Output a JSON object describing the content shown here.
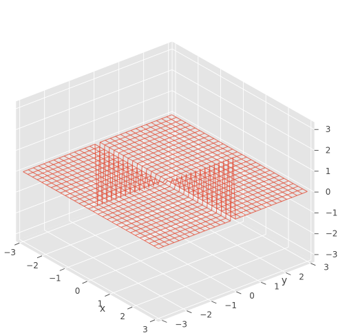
{
  "chart_data": {
    "type": "wireframe-3d",
    "title": "",
    "xlabel": "x",
    "ylabel": "y",
    "zlabel": "",
    "xlim": [
      -3,
      3
    ],
    "ylim": [
      -3,
      3
    ],
    "zlim": [
      -3,
      3
    ],
    "x_ticks": [
      -3,
      -2,
      -1,
      0,
      1,
      2,
      3
    ],
    "y_ticks": [
      -3,
      -2,
      -1,
      0,
      1,
      2,
      3
    ],
    "z_ticks": [
      -3,
      -2,
      -1,
      0,
      1,
      2,
      3
    ],
    "x_tick_labels": [
      "−3",
      "−2",
      "−1",
      "0",
      "1",
      "2",
      "3"
    ],
    "y_tick_labels": [
      "−3",
      "−2",
      "−1",
      "0",
      "1",
      "2",
      "3"
    ],
    "z_tick_labels": [
      "−3",
      "−2",
      "−1",
      "0",
      "1",
      "2",
      "3"
    ],
    "surface": {
      "grid_x_range": [
        -3,
        3
      ],
      "grid_y_range": [
        -3,
        3
      ],
      "grid_lines_per_axis": 30,
      "base_z": 0,
      "singular_line_y_equals": 0,
      "description_values": {
        "x_range_of_spikes": [
          -3,
          3
        ],
        "spike_z_at_x_neg3": -3.0,
        "spike_z_at_x_3": 3.0
      }
    },
    "grid": true,
    "colors": {
      "surface": "#e24a33",
      "pane": "#e5e5e5",
      "grid": "#ffffff",
      "text": "#444444"
    }
  }
}
